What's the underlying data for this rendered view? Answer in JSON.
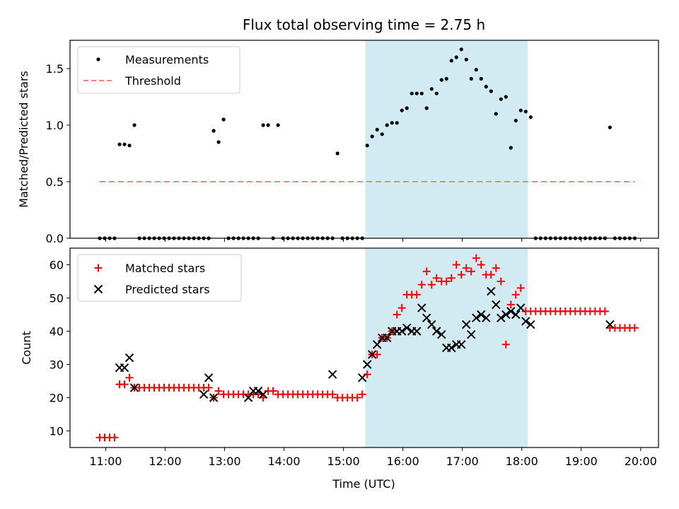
{
  "colors": {
    "measurement": "#000000",
    "threshold": "#ff7f7f",
    "matched": "#ff0000",
    "predicted": "#000000",
    "shade": "#add8e6"
  },
  "chart_data": [
    {
      "type": "scatter",
      "title": "Flux total observing time = 2.75 h",
      "xlabel": "",
      "ylabel": "Matched/Predicted stars",
      "xlim": [
        "10:24",
        "20:18"
      ],
      "ylim": [
        0,
        1.75
      ],
      "yticks": [
        "0.0",
        "0.5",
        "1.0",
        "1.5"
      ],
      "legend_position": "upper left",
      "legend": [
        "Measurements",
        "Threshold"
      ],
      "shaded_interval": [
        "15:22",
        "18:06"
      ],
      "threshold": {
        "value": 0.5,
        "x_start": "10:54",
        "x_end": "19:54"
      },
      "series": [
        {
          "name": "Measurements",
          "x": [
            "10:54",
            "10:59",
            "11:04",
            "11:09",
            "11:14",
            "11:19",
            "11:24",
            "11:29",
            "11:34",
            "11:39",
            "11:44",
            "11:49",
            "11:54",
            "11:59",
            "12:04",
            "12:09",
            "12:14",
            "12:19",
            "12:24",
            "12:29",
            "12:34",
            "12:39",
            "12:44",
            "12:49",
            "12:54",
            "12:59",
            "13:04",
            "13:09",
            "13:14",
            "13:19",
            "13:24",
            "13:29",
            "13:34",
            "13:39",
            "13:44",
            "13:49",
            "13:54",
            "13:59",
            "14:04",
            "14:09",
            "14:14",
            "14:19",
            "14:24",
            "14:29",
            "14:34",
            "14:39",
            "14:44",
            "14:49",
            "14:54",
            "14:59",
            "15:04",
            "15:09",
            "15:14",
            "15:19",
            "15:24",
            "15:29",
            "15:34",
            "15:39",
            "15:44",
            "15:49",
            "15:54",
            "15:59",
            "16:04",
            "16:09",
            "16:14",
            "16:19",
            "16:24",
            "16:29",
            "16:34",
            "16:39",
            "16:44",
            "16:49",
            "16:54",
            "16:59",
            "17:04",
            "17:09",
            "17:14",
            "17:19",
            "17:24",
            "17:29",
            "17:34",
            "17:39",
            "17:44",
            "17:49",
            "17:54",
            "17:59",
            "18:04",
            "18:09",
            "18:14",
            "18:19",
            "18:24",
            "18:29",
            "18:34",
            "18:39",
            "18:44",
            "18:49",
            "18:54",
            "18:59",
            "19:04",
            "19:09",
            "19:14",
            "19:19",
            "19:24",
            "19:29",
            "19:34",
            "19:39",
            "19:44",
            "19:49",
            "19:54"
          ],
          "y": [
            0,
            0,
            0,
            0,
            0.83,
            0.83,
            0.82,
            1.0,
            0,
            0,
            0,
            0,
            0,
            0,
            0,
            0,
            0,
            0,
            0,
            0,
            0,
            0,
            0,
            0.95,
            0.85,
            1.05,
            0,
            0,
            0,
            0,
            0,
            0,
            0,
            1.0,
            1.0,
            0,
            1.0,
            0,
            0,
            0,
            0,
            0,
            0,
            0,
            0,
            0,
            0,
            0,
            0.75,
            0,
            0,
            0,
            0,
            0,
            0.82,
            0.9,
            0.96,
            0.92,
            1.0,
            1.02,
            1.02,
            1.13,
            1.15,
            1.28,
            1.28,
            1.28,
            1.15,
            1.32,
            1.28,
            1.4,
            1.41,
            1.57,
            1.6,
            1.67,
            1.58,
            1.41,
            1.49,
            1.41,
            1.34,
            1.3,
            1.1,
            1.23,
            1.25,
            0.8,
            1.04,
            1.13,
            1.12,
            1.07,
            0,
            0,
            0,
            0,
            0,
            0,
            0,
            0,
            0,
            0,
            0,
            0,
            0,
            0,
            0,
            0.98,
            0,
            0,
            0,
            0,
            0
          ]
        }
      ]
    },
    {
      "type": "scatter",
      "title": "",
      "xlabel": "Time (UTC)",
      "ylabel": "Count",
      "xlim": [
        "10:24",
        "20:18"
      ],
      "ylim": [
        5,
        65
      ],
      "yticks": [
        "10",
        "20",
        "30",
        "40",
        "50",
        "60"
      ],
      "xticks": [
        "11:00",
        "12:00",
        "13:00",
        "14:00",
        "15:00",
        "16:00",
        "17:00",
        "18:00",
        "19:00",
        "20:00"
      ],
      "legend_position": "upper left",
      "legend": [
        "Matched stars",
        "Predicted stars"
      ],
      "shaded_interval": [
        "15:22",
        "18:06"
      ],
      "series": [
        {
          "name": "Matched stars",
          "x": [
            "10:54",
            "10:59",
            "11:04",
            "11:09",
            "11:14",
            "11:19",
            "11:24",
            "11:29",
            "11:34",
            "11:39",
            "11:44",
            "11:49",
            "11:54",
            "11:59",
            "12:04",
            "12:09",
            "12:14",
            "12:19",
            "12:24",
            "12:29",
            "12:34",
            "12:39",
            "12:44",
            "12:49",
            "12:54",
            "12:59",
            "13:04",
            "13:09",
            "13:14",
            "13:19",
            "13:24",
            "13:29",
            "13:34",
            "13:39",
            "13:44",
            "13:49",
            "13:54",
            "13:59",
            "14:04",
            "14:09",
            "14:14",
            "14:19",
            "14:24",
            "14:29",
            "14:34",
            "14:39",
            "14:44",
            "14:49",
            "14:54",
            "14:59",
            "15:04",
            "15:09",
            "15:14",
            "15:19",
            "15:24",
            "15:29",
            "15:34",
            "15:39",
            "15:44",
            "15:49",
            "15:54",
            "15:59",
            "16:04",
            "16:09",
            "16:14",
            "16:19",
            "16:24",
            "16:29",
            "16:34",
            "16:39",
            "16:44",
            "16:49",
            "16:54",
            "16:59",
            "17:04",
            "17:09",
            "17:14",
            "17:19",
            "17:24",
            "17:29",
            "17:34",
            "17:39",
            "17:44",
            "17:49",
            "17:54",
            "17:59",
            "18:04",
            "18:09",
            "18:14",
            "18:19",
            "18:24",
            "18:29",
            "18:34",
            "18:39",
            "18:44",
            "18:49",
            "18:54",
            "18:59",
            "19:04",
            "19:09",
            "19:14",
            "19:19",
            "19:24",
            "19:29",
            "19:34",
            "19:39",
            "19:44",
            "19:49",
            "19:54"
          ],
          "y": [
            8,
            8,
            8,
            8,
            24,
            24,
            26,
            23,
            23,
            23,
            23,
            23,
            23,
            23,
            23,
            23,
            23,
            23,
            23,
            23,
            23,
            23,
            23,
            20,
            22,
            21,
            21,
            21,
            21,
            21,
            21,
            21,
            21,
            20,
            22,
            22,
            21,
            21,
            21,
            21,
            21,
            21,
            21,
            21,
            21,
            21,
            21,
            21,
            20,
            20,
            20,
            20,
            20,
            21,
            27,
            33,
            33,
            38,
            38,
            40,
            45,
            47,
            51,
            51,
            51,
            54,
            58,
            54,
            56,
            55,
            55,
            56,
            60,
            57,
            59,
            58,
            62,
            60,
            57,
            57,
            59,
            55,
            36,
            48,
            51,
            53,
            46,
            46,
            46,
            46,
            46,
            46,
            46,
            46,
            46,
            46,
            46,
            46,
            46,
            46,
            46,
            46,
            46,
            41,
            41,
            41,
            41,
            41,
            41
          ]
        },
        {
          "name": "Predicted stars",
          "x": [
            "11:14",
            "11:19",
            "11:24",
            "11:29",
            "12:39",
            "12:44",
            "12:49",
            "13:24",
            "13:29",
            "13:34",
            "13:39",
            "14:49",
            "15:19",
            "15:24",
            "15:29",
            "15:34",
            "15:39",
            "15:44",
            "15:49",
            "15:54",
            "15:59",
            "16:04",
            "16:09",
            "16:14",
            "16:19",
            "16:24",
            "16:29",
            "16:34",
            "16:39",
            "16:44",
            "16:49",
            "16:54",
            "16:59",
            "17:04",
            "17:09",
            "17:14",
            "17:19",
            "17:24",
            "17:29",
            "17:34",
            "17:39",
            "17:44",
            "17:49",
            "17:54",
            "17:59",
            "18:04",
            "18:09",
            "19:29"
          ],
          "y": [
            29,
            29,
            32,
            23,
            21,
            26,
            20,
            20,
            22,
            22,
            21,
            27,
            26,
            30,
            33,
            36,
            38,
            38,
            40,
            40,
            40,
            41,
            40,
            40,
            47,
            44,
            42,
            40,
            39,
            35,
            35,
            36,
            36,
            42,
            39,
            44,
            45,
            44,
            52,
            48,
            44,
            45,
            46,
            45,
            47,
            43,
            42,
            42
          ]
        }
      ]
    }
  ]
}
